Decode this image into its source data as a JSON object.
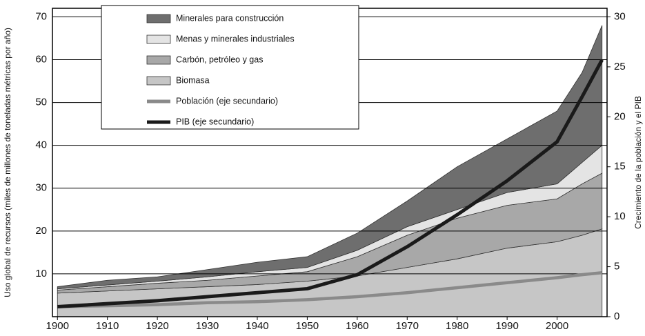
{
  "chart_data": {
    "type": "stacked_area",
    "y_label": "Uso global de recursos (miles de millones de toneladas métricas por año)",
    "y2_label": "Crecimiento de la población y el PIB",
    "x": [
      1900,
      1910,
      1920,
      1930,
      1940,
      1950,
      1960,
      1970,
      1980,
      1990,
      2000,
      2005,
      2009
    ],
    "xlim": [
      1899,
      2010
    ],
    "xticks": [
      1900,
      1910,
      1920,
      1930,
      1940,
      1950,
      1960,
      1970,
      1980,
      1990,
      2000
    ],
    "ylim": [
      0,
      72
    ],
    "yticks": [
      10,
      20,
      30,
      40,
      50,
      60,
      70
    ],
    "y2lim": [
      0,
      30.86
    ],
    "y2ticks": [
      0,
      5,
      10,
      15,
      20,
      25,
      30
    ],
    "grid": true,
    "series": [
      {
        "name": "Minerales para construcción",
        "color": "#6e6e6e",
        "values": [
          0.5,
          1.1,
          1,
          1.7,
          2.2,
          2.5,
          4,
          6,
          10,
          12.5,
          17,
          21,
          28
        ]
      },
      {
        "name": "Menas y minerales industriales",
        "color": "#e4e4e4",
        "values": [
          0.3,
          0.4,
          0.5,
          0.8,
          1,
          1,
          1.5,
          2,
          2,
          3,
          3.5,
          5,
          6.5
        ]
      },
      {
        "name": "Carbón, petróleo y gas",
        "color": "#a8a8a8",
        "values": [
          0.7,
          1,
          1.3,
          1.5,
          2,
          2.2,
          4.5,
          7.5,
          9.5,
          10,
          10,
          12,
          13
        ]
      },
      {
        "name": "Biomasa",
        "color": "#c6c6c6",
        "values": [
          5.5,
          6,
          6.5,
          7,
          7.5,
          8.3,
          9.5,
          11.5,
          13.5,
          16,
          17.5,
          19,
          20.5
        ]
      },
      {
        "name": "Población (eje secundario)",
        "color": "#8a8a8a",
        "axis": "y2",
        "values": [
          1,
          1.1,
          1.2,
          1.4,
          1.5,
          1.7,
          2,
          2.4,
          2.9,
          3.4,
          3.9,
          4.2,
          4.4
        ]
      },
      {
        "name": "PIB (eje secundario)",
        "color": "#1a1a1a",
        "axis": "y2",
        "values": [
          1,
          1.3,
          1.6,
          2,
          2.4,
          2.8,
          4.2,
          7,
          10.2,
          13.6,
          17.5,
          22,
          25.7
        ]
      }
    ]
  }
}
